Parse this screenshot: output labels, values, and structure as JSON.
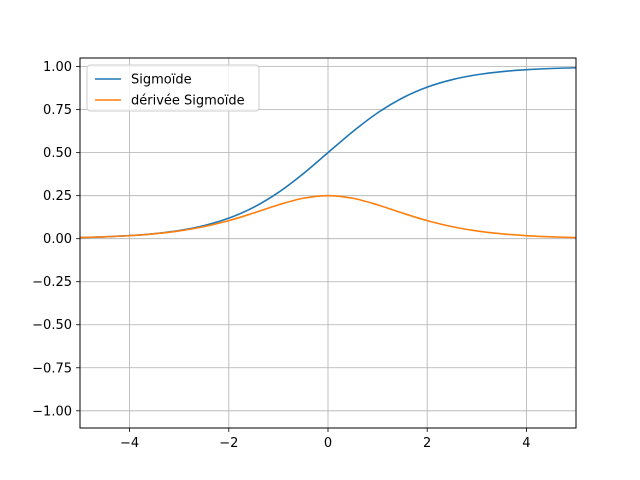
{
  "chart_data": {
    "type": "line",
    "title": "",
    "xlabel": "",
    "ylabel": "",
    "xlim": [
      -5,
      5
    ],
    "ylim": [
      -1.1,
      1.05
    ],
    "xticks": [
      -4,
      -2,
      0,
      2,
      4
    ],
    "xtick_labels": [
      "−4",
      "−2",
      "0",
      "2",
      "4"
    ],
    "yticks": [
      -1.0,
      -0.75,
      -0.5,
      -0.25,
      0.0,
      0.25,
      0.5,
      0.75,
      1.0
    ],
    "ytick_labels": [
      "−1.00",
      "−0.75",
      "−0.50",
      "−0.25",
      "0.00",
      "0.25",
      "0.50",
      "0.75",
      "1.00"
    ],
    "grid": true,
    "legend_position": "top-left",
    "x": [
      -5,
      -4.5,
      -4,
      -3.5,
      -3,
      -2.5,
      -2,
      -1.5,
      -1,
      -0.5,
      0,
      0.5,
      1,
      1.5,
      2,
      2.5,
      3,
      3.5,
      4,
      4.5,
      5
    ],
    "series": [
      {
        "name": "Sigmoïde",
        "color": "#1f77b4",
        "values": [
          0.0067,
          0.011,
          0.018,
          0.0293,
          0.0474,
          0.0759,
          0.1192,
          0.1824,
          0.2689,
          0.3775,
          0.5,
          0.6225,
          0.7311,
          0.8176,
          0.8808,
          0.9241,
          0.9526,
          0.9707,
          0.982,
          0.989,
          0.9933
        ]
      },
      {
        "name": "dérivée Sigmoïde",
        "color": "#ff7f0e",
        "values": [
          0.0066,
          0.0109,
          0.0177,
          0.0285,
          0.0452,
          0.0701,
          0.105,
          0.1491,
          0.1966,
          0.235,
          0.25,
          0.235,
          0.1966,
          0.1491,
          0.105,
          0.0701,
          0.0452,
          0.0285,
          0.0177,
          0.0109,
          0.0066
        ]
      }
    ]
  }
}
